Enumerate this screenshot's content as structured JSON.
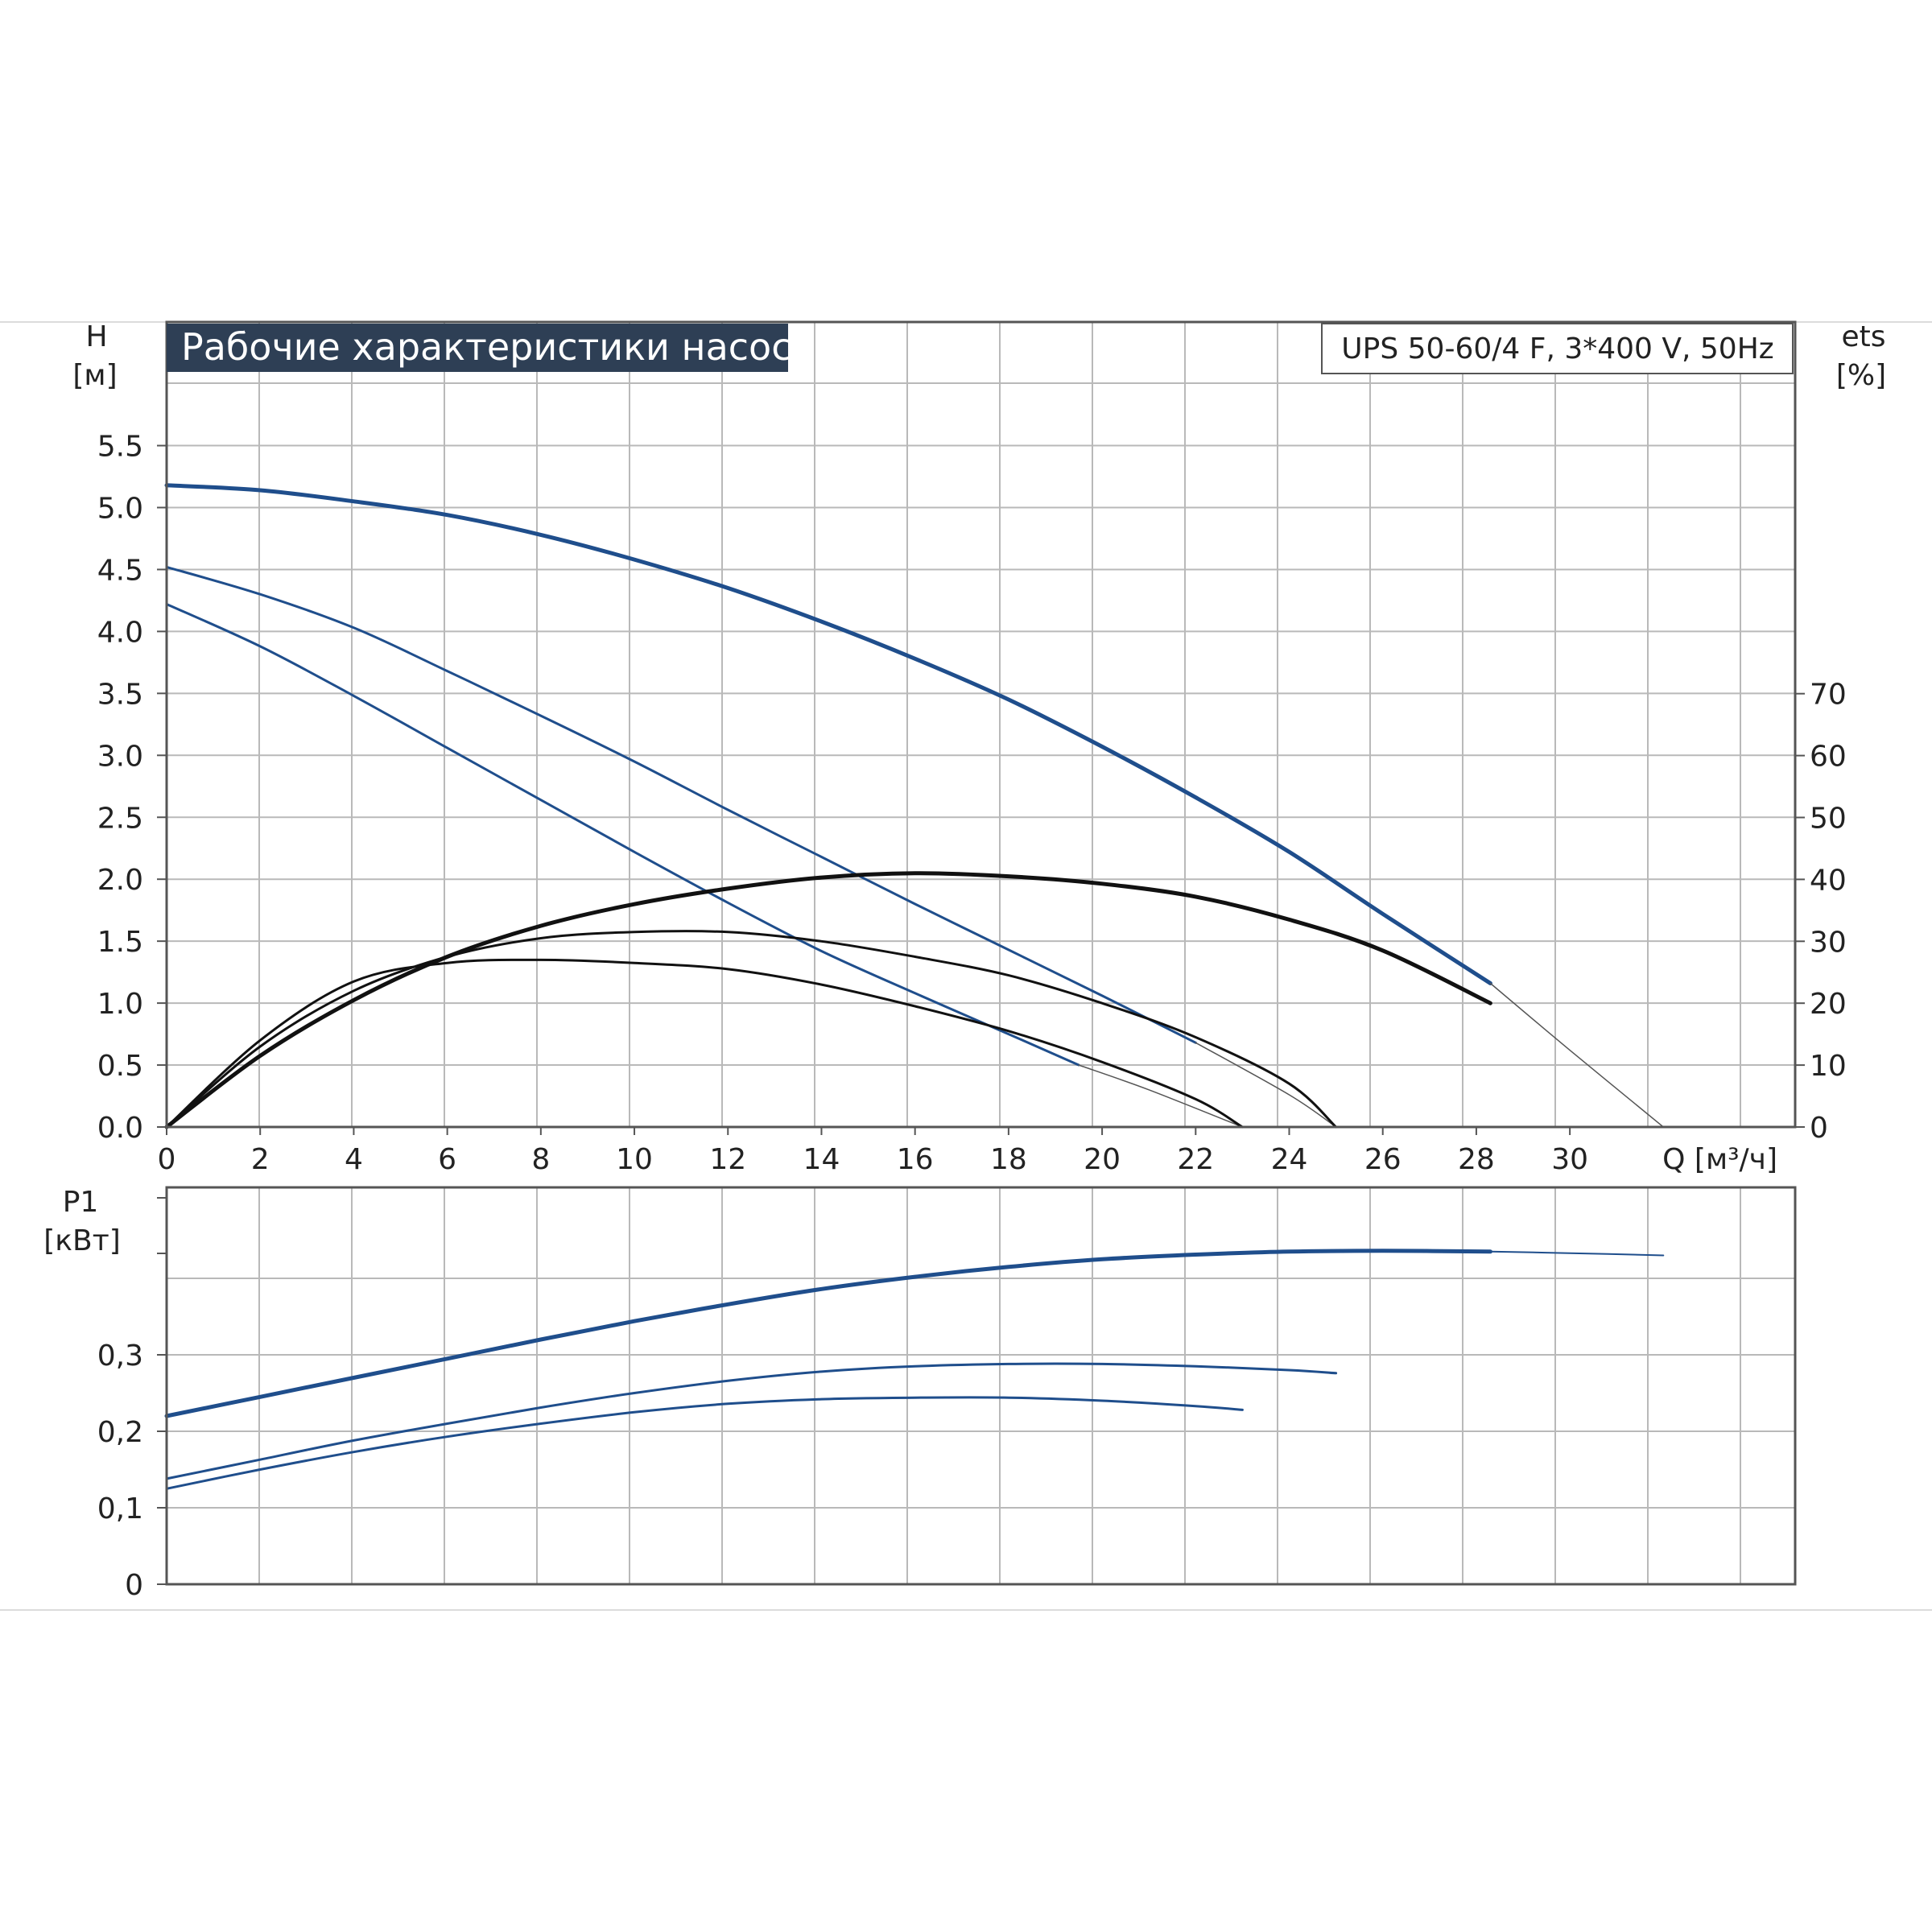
{
  "title": "Рабочие характеристики насоса",
  "model": "UPS 50-60/4 F, 3*400 V, 50Hz",
  "colors": {
    "blue": "#1f4e8c",
    "black": "#111111",
    "grid": "#b9b9b9",
    "title_bg": "#2e3f55"
  },
  "chart_data": [
    {
      "type": "line",
      "panel": "head-efficiency",
      "xlabel": "Q [м³/ч]",
      "ylabel": "H",
      "yunit": "[м]",
      "y2label": "ets",
      "y2unit": "[%]",
      "xlim": [
        0,
        32
      ],
      "ylim": [
        0,
        5.5
      ],
      "y2lim": [
        0,
        70
      ],
      "x_ticks": [
        "0",
        "2",
        "4",
        "6",
        "8",
        "10",
        "12",
        "14",
        "16",
        "18",
        "20",
        "22",
        "24",
        "26",
        "28",
        "30"
      ],
      "y_ticks": [
        "0.0",
        "0.5",
        "1.0",
        "1.5",
        "2.0",
        "2.5",
        "3.0",
        "3.5",
        "4.0",
        "4.5",
        "5.0",
        "5.5"
      ],
      "y2_ticks": [
        "0",
        "10",
        "20",
        "30",
        "40",
        "50",
        "60",
        "70"
      ],
      "grid": true,
      "series": [
        {
          "axis": "H",
          "color": "#1f4e8c",
          "width": 5,
          "x": [
            0,
            2,
            4,
            6,
            8,
            10,
            12,
            14,
            16,
            18,
            20,
            22,
            24,
            26,
            28.3
          ],
          "y": [
            5.18,
            5.14,
            5.05,
            4.94,
            4.78,
            4.58,
            4.35,
            4.08,
            3.78,
            3.45,
            3.07,
            2.66,
            2.22,
            1.72,
            1.16
          ]
        },
        {
          "axis": "H",
          "color": "#555555",
          "width": 1.5,
          "x": [
            28.3,
            30,
            32
          ],
          "y": [
            1.16,
            0.62,
            0.0
          ]
        },
        {
          "axis": "H",
          "color": "#1f4e8c",
          "width": 3,
          "x": [
            0,
            2,
            4,
            6,
            8,
            10,
            12,
            14,
            16,
            18,
            20,
            22
          ],
          "y": [
            4.52,
            4.3,
            4.03,
            3.68,
            3.32,
            2.95,
            2.56,
            2.18,
            1.8,
            1.43,
            1.06,
            0.68
          ]
        },
        {
          "axis": "H",
          "color": "#555555",
          "width": 1.5,
          "x": [
            22,
            24,
            25
          ],
          "y": [
            0.68,
            0.26,
            0.0
          ]
        },
        {
          "axis": "H",
          "color": "#1f4e8c",
          "width": 3,
          "x": [
            0,
            2,
            4,
            6,
            8,
            10,
            12,
            14,
            16,
            18,
            19.5
          ],
          "y": [
            4.22,
            3.88,
            3.48,
            3.06,
            2.64,
            2.22,
            1.81,
            1.42,
            1.08,
            0.75,
            0.5
          ]
        },
        {
          "axis": "H",
          "color": "#555555",
          "width": 1.5,
          "x": [
            19.5,
            21,
            23
          ],
          "y": [
            0.5,
            0.3,
            0.0
          ]
        },
        {
          "axis": "eta",
          "color": "#111111",
          "width": 5,
          "x": [
            0,
            2,
            4,
            6,
            8,
            10,
            12,
            14,
            16,
            18,
            20,
            22,
            24,
            26,
            28.3
          ],
          "y": [
            0,
            11.5,
            20.5,
            27.5,
            32.5,
            36,
            38.5,
            40.3,
            41,
            40.5,
            39.3,
            37.2,
            33.5,
            28.5,
            20
          ]
        },
        {
          "axis": "eta",
          "color": "#111111",
          "width": 3,
          "x": [
            0,
            2,
            4,
            6,
            8,
            10,
            12,
            14,
            16,
            18,
            20,
            22,
            24,
            25
          ],
          "y": [
            0,
            13,
            22,
            27.5,
            30.5,
            31.5,
            31.5,
            30,
            27.5,
            24.5,
            20,
            14.5,
            7,
            0
          ]
        },
        {
          "axis": "eta",
          "color": "#111111",
          "width": 3,
          "x": [
            0,
            2,
            4,
            6,
            8,
            10,
            12,
            14,
            16,
            18,
            20,
            22,
            23
          ],
          "y": [
            0,
            14,
            23.5,
            26.5,
            27,
            26.5,
            25.5,
            23,
            19.5,
            15.5,
            10.5,
            4.5,
            0
          ]
        }
      ]
    },
    {
      "type": "line",
      "panel": "power",
      "xlabel": "",
      "ylabel": "P1",
      "yunit": "[кВт]",
      "xlim": [
        0,
        32
      ],
      "ylim": [
        0,
        0.5
      ],
      "y_ticks": [
        "0",
        "0,1",
        "0,2",
        "0,3"
      ],
      "grid": true,
      "series": [
        {
          "color": "#1f4e8c",
          "width": 5,
          "x": [
            0,
            2,
            4,
            6,
            8,
            10,
            12,
            14,
            16,
            18,
            20,
            22,
            24,
            26,
            28.3
          ],
          "y": [
            0.22,
            0.245,
            0.27,
            0.295,
            0.32,
            0.344,
            0.366,
            0.386,
            0.402,
            0.415,
            0.425,
            0.431,
            0.435,
            0.436,
            0.435
          ]
        },
        {
          "color": "#1f4e8c",
          "width": 2,
          "x": [
            28.3,
            30,
            32
          ],
          "y": [
            0.435,
            0.433,
            0.43
          ]
        },
        {
          "color": "#1f4e8c",
          "width": 3,
          "x": [
            0,
            2,
            4,
            6,
            8,
            10,
            12,
            14,
            16,
            18,
            20,
            22,
            24,
            25
          ],
          "y": [
            0.138,
            0.163,
            0.188,
            0.21,
            0.231,
            0.25,
            0.266,
            0.278,
            0.285,
            0.288,
            0.288,
            0.285,
            0.28,
            0.276
          ]
        },
        {
          "color": "#1f4e8c",
          "width": 3,
          "x": [
            0,
            2,
            4,
            6,
            8,
            10,
            12,
            14,
            16,
            18,
            20,
            22,
            23
          ],
          "y": [
            0.125,
            0.15,
            0.173,
            0.193,
            0.21,
            0.225,
            0.236,
            0.242,
            0.244,
            0.244,
            0.24,
            0.233,
            0.228
          ]
        }
      ]
    }
  ]
}
